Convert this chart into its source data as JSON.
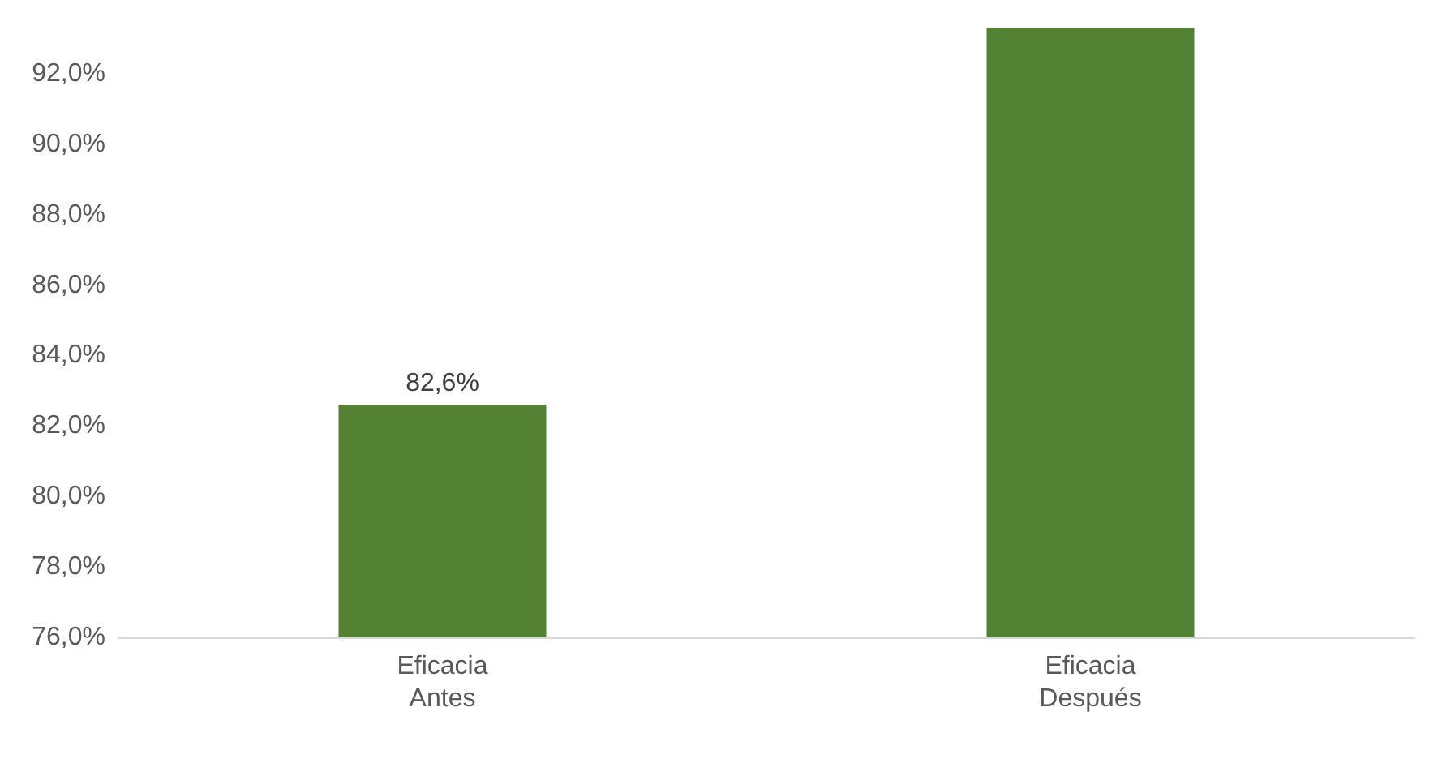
{
  "chart_data": {
    "type": "bar",
    "categories": [
      "Eficacia\nAntes",
      "Eficacia\nDespués"
    ],
    "values": [
      82.6,
      93.3
    ],
    "color": "#548235",
    "value_labels": [
      "82,6%",
      null
    ],
    "ylim": [
      76,
      93.4
    ],
    "yticks": [
      {
        "value": 76,
        "label": "76,0%"
      },
      {
        "value": 78,
        "label": "78,0%"
      },
      {
        "value": 80,
        "label": "80,0%"
      },
      {
        "value": 82,
        "label": "82,0%"
      },
      {
        "value": 84,
        "label": "84,0%"
      },
      {
        "value": 86,
        "label": "86,0%"
      },
      {
        "value": 88,
        "label": "88,0%"
      },
      {
        "value": 90,
        "label": "90,0%"
      },
      {
        "value": 92,
        "label": "92,0%"
      }
    ],
    "grid": false
  }
}
